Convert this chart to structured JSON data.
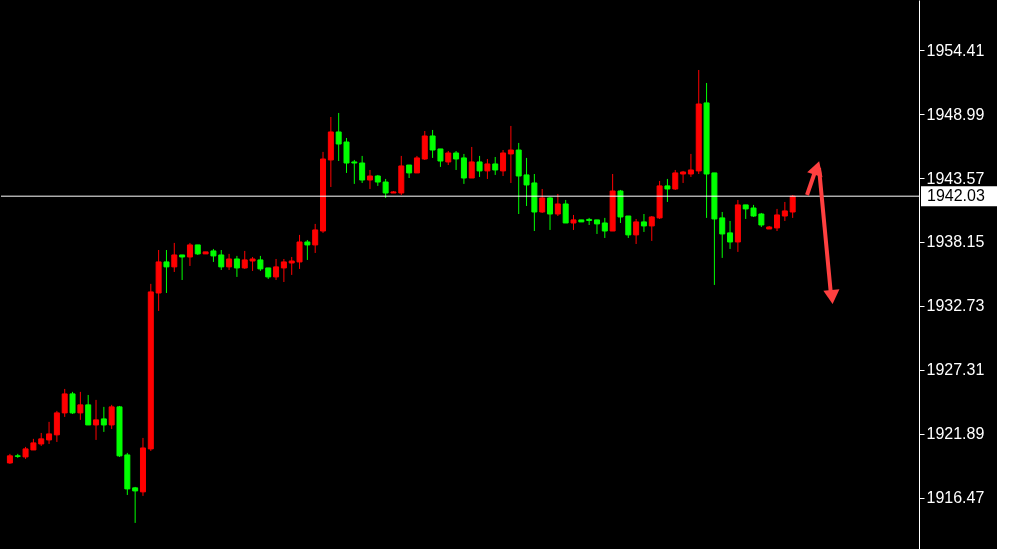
{
  "chart_data": {
    "type": "candlestick",
    "categories": [
      null,
      null,
      null,
      null,
      null,
      null,
      null,
      null,
      null,
      null,
      null,
      null,
      null,
      null,
      null,
      null,
      null,
      null,
      null,
      null,
      null,
      null,
      null,
      null,
      null,
      null,
      null,
      null,
      null,
      null,
      null,
      null,
      null,
      null,
      null,
      null,
      null,
      null,
      null,
      null,
      null,
      null,
      null,
      null,
      null,
      null,
      null,
      null,
      null,
      null,
      null,
      null,
      null,
      null,
      null,
      null,
      null,
      null,
      null,
      null,
      null,
      null,
      null,
      null,
      null,
      null,
      null,
      null,
      null,
      null,
      null,
      null,
      null,
      null,
      null,
      null,
      null,
      null,
      null,
      null,
      null,
      null,
      null,
      null,
      null,
      null,
      null,
      null,
      null,
      null,
      null,
      null,
      null,
      null,
      null,
      null,
      null,
      null,
      null,
      null,
      null,
      null,
      null,
      null,
      null,
      null,
      null,
      null,
      null,
      null,
      null,
      null,
      null,
      null,
      null,
      null
    ],
    "ohlc": [
      [
        1919.43,
        1920.2,
        1919.35,
        1920.03
      ],
      [
        1920.03,
        1920.2,
        1919.86,
        1919.99
      ],
      [
        1919.94,
        1920.79,
        1919.77,
        1920.62
      ],
      [
        1920.53,
        1921.47,
        1920.53,
        1921.13
      ],
      [
        1921.04,
        1921.97,
        1920.87,
        1921.47
      ],
      [
        1921.38,
        1922.91,
        1921.04,
        1921.89
      ],
      [
        1921.81,
        1923.84,
        1921.21,
        1923.67
      ],
      [
        1923.67,
        1925.7,
        1923.33,
        1925.28
      ],
      [
        1925.28,
        1925.45,
        1923.58,
        1923.67
      ],
      [
        1923.67,
        1925.45,
        1923.08,
        1924.35
      ],
      [
        1924.35,
        1925.19,
        1922.65,
        1922.65
      ],
      [
        1922.65,
        1924.77,
        1921.38,
        1923.08
      ],
      [
        1923.16,
        1924.18,
        1922.06,
        1922.65
      ],
      [
        1922.65,
        1924.35,
        1922.31,
        1924.18
      ],
      [
        1924.18,
        1924.26,
        1919.94,
        1920.03
      ],
      [
        1920.11,
        1920.28,
        1916.72,
        1917.23
      ],
      [
        1917.32,
        1917.4,
        1914.35,
        1917.06
      ],
      [
        1916.98,
        1921.55,
        1916.64,
        1920.7
      ],
      [
        1920.62,
        1934.6,
        1920.45,
        1933.92
      ],
      [
        1933.83,
        1937.47,
        1932.31,
        1936.46
      ],
      [
        1936.46,
        1937.47,
        1933.83,
        1936.04
      ],
      [
        1936.04,
        1938.07,
        1935.61,
        1937.05
      ],
      [
        1937.05,
        1937.05,
        1934.93,
        1936.88
      ],
      [
        1936.88,
        1938.07,
        1936.12,
        1937.9
      ],
      [
        1937.9,
        1937.9,
        1937.05,
        1937.14
      ],
      [
        1937.14,
        1937.31,
        1937.14,
        1937.31
      ],
      [
        1937.39,
        1937.56,
        1936.46,
        1936.97
      ],
      [
        1937.05,
        1937.47,
        1935.78,
        1936.04
      ],
      [
        1936.04,
        1937.14,
        1935.78,
        1936.71
      ],
      [
        1936.71,
        1936.97,
        1935.19,
        1935.95
      ],
      [
        1935.95,
        1937.39,
        1935.87,
        1936.63
      ],
      [
        1936.54,
        1936.88,
        1935.7,
        1936.71
      ],
      [
        1936.63,
        1936.97,
        1935.7,
        1935.87
      ],
      [
        1935.95,
        1935.95,
        1935.02,
        1935.19
      ],
      [
        1935.19,
        1936.71,
        1934.93,
        1936.04
      ],
      [
        1935.95,
        1936.71,
        1934.76,
        1936.46
      ],
      [
        1936.37,
        1936.88,
        1935.36,
        1936.54
      ],
      [
        1936.46,
        1938.75,
        1935.87,
        1938.15
      ],
      [
        1938.15,
        1938.32,
        1936.63,
        1937.9
      ],
      [
        1937.9,
        1939.68,
        1937.22,
        1939.17
      ],
      [
        1939.08,
        1945.78,
        1938.92,
        1945.18
      ],
      [
        1945.1,
        1948.74,
        1942.81,
        1947.47
      ],
      [
        1947.47,
        1949.08,
        1945.01,
        1946.45
      ],
      [
        1946.62,
        1946.96,
        1944.0,
        1944.84
      ],
      [
        1944.93,
        1945.1,
        1943.07,
        1944.84
      ],
      [
        1944.84,
        1945.44,
        1943.15,
        1943.4
      ],
      [
        1943.4,
        1944.25,
        1942.64,
        1943.74
      ],
      [
        1943.74,
        1943.83,
        1942.9,
        1943.23
      ],
      [
        1943.23,
        1943.49,
        1941.88,
        1942.3
      ],
      [
        1942.3,
        1942.47,
        1942.3,
        1942.39
      ],
      [
        1942.3,
        1945.44,
        1942.13,
        1944.59
      ],
      [
        1944.67,
        1944.67,
        1943.57,
        1944.0
      ],
      [
        1944.0,
        1945.44,
        1944.0,
        1945.27
      ],
      [
        1945.18,
        1947.55,
        1945.1,
        1947.13
      ],
      [
        1947.13,
        1947.64,
        1945.27,
        1945.94
      ],
      [
        1946.03,
        1946.03,
        1944.51,
        1945.01
      ],
      [
        1944.93,
        1945.86,
        1944.67,
        1945.69
      ],
      [
        1945.69,
        1945.86,
        1944.25,
        1945.18
      ],
      [
        1945.27,
        1945.61,
        1943.07,
        1943.57
      ],
      [
        1943.57,
        1946.2,
        1943.57,
        1944.93
      ],
      [
        1944.93,
        1945.44,
        1943.66,
        1944.17
      ],
      [
        1944.17,
        1945.18,
        1943.49,
        1944.76
      ],
      [
        1944.76,
        1945.35,
        1943.83,
        1944.25
      ],
      [
        1944.17,
        1945.94,
        1943.74,
        1945.69
      ],
      [
        1945.61,
        1947.98,
        1943.15,
        1945.94
      ],
      [
        1945.94,
        1946.54,
        1940.52,
        1943.74
      ],
      [
        1943.83,
        1945.27,
        1941.2,
        1942.98
      ],
      [
        1943.15,
        1943.91,
        1939.08,
        1940.69
      ],
      [
        1940.69,
        1942.64,
        1940.61,
        1941.88
      ],
      [
        1941.88,
        1941.96,
        1939.17,
        1940.52
      ],
      [
        1940.52,
        1942.22,
        1940.35,
        1941.37
      ],
      [
        1941.37,
        1941.71,
        1939.76,
        1939.76
      ],
      [
        1939.76,
        1940.44,
        1939.17,
        1940.02
      ],
      [
        1940.02,
        1940.02,
        1939.85,
        1939.85
      ],
      [
        1940.06,
        1940.19,
        1939.59,
        1939.97
      ],
      [
        1940.02,
        1940.02,
        1938.83,
        1939.68
      ],
      [
        1939.76,
        1940.19,
        1938.49,
        1939.08
      ],
      [
        1939.08,
        1943.91,
        1939.08,
        1942.47
      ],
      [
        1942.47,
        1942.56,
        1939.76,
        1940.27
      ],
      [
        1940.35,
        1940.35,
        1938.49,
        1938.75
      ],
      [
        1938.75,
        1940.1,
        1937.98,
        1939.85
      ],
      [
        1939.85,
        1940.52,
        1939.0,
        1939.51
      ],
      [
        1939.51,
        1940.35,
        1938.24,
        1940.27
      ],
      [
        1940.19,
        1943.32,
        1940.1,
        1942.9
      ],
      [
        1942.9,
        1943.49,
        1941.54,
        1942.64
      ],
      [
        1942.64,
        1944.25,
        1942.56,
        1944.0
      ],
      [
        1943.91,
        1944.17,
        1943.15,
        1944.08
      ],
      [
        1943.91,
        1945.61,
        1943.66,
        1944.25
      ],
      [
        1944.17,
        1952.72,
        1943.91,
        1949.84
      ],
      [
        1949.93,
        1951.62,
        1940.19,
        1943.91
      ],
      [
        1944.0,
        1944.0,
        1934.51,
        1940.1
      ],
      [
        1940.19,
        1940.69,
        1936.8,
        1938.83
      ],
      [
        1938.92,
        1939.93,
        1937.56,
        1938.15
      ],
      [
        1938.15,
        1941.71,
        1937.31,
        1941.29
      ],
      [
        1941.29,
        1941.29,
        1940.1,
        1940.95
      ],
      [
        1941.03,
        1941.29,
        1940.27,
        1940.35
      ],
      [
        1940.52,
        1940.61,
        1939.42,
        1939.59
      ],
      [
        1939.25,
        1939.51,
        1939.25,
        1939.42
      ],
      [
        1939.34,
        1940.95,
        1939.08,
        1940.44
      ],
      [
        1940.35,
        1941.54,
        1939.93,
        1940.78
      ],
      [
        1940.69,
        1942.13,
        1940.19,
        1942.03
      ],
      null,
      null,
      null,
      null,
      null,
      null,
      null,
      null,
      null,
      null,
      null,
      null,
      null,
      null,
      null
    ],
    "colors": [
      "#ff0000",
      "#00ff00",
      "#ff0000",
      "#ff0000",
      "#ff0000",
      "#ff0000",
      "#ff0000",
      "#ff0000",
      "#00ff00",
      "#ff0000",
      "#00ff00",
      "#ff0000",
      "#00ff00",
      "#ff0000",
      "#00ff00",
      "#00ff00",
      "#00ff00",
      "#ff0000",
      "#ff0000",
      "#ff0000",
      "#00ff00",
      "#ff0000",
      "#00ff00",
      "#ff0000",
      "#00ff00",
      "#ff0000",
      "#00ff00",
      "#00ff00",
      "#ff0000",
      "#00ff00",
      "#ff0000",
      "#ff0000",
      "#00ff00",
      "#00ff00",
      "#ff0000",
      "#ff0000",
      "#ff0000",
      "#ff0000",
      "#00ff00",
      "#ff0000",
      "#ff0000",
      "#ff0000",
      "#00ff00",
      "#00ff00",
      "#00ff00",
      "#00ff00",
      "#ff0000",
      "#00ff00",
      "#00ff00",
      "#ff0000",
      "#ff0000",
      "#00ff00",
      "#ff0000",
      "#ff0000",
      "#00ff00",
      "#00ff00",
      "#ff0000",
      "#00ff00",
      "#00ff00",
      "#ff0000",
      "#00ff00",
      "#ff0000",
      "#00ff00",
      "#ff0000",
      "#ff0000",
      "#00ff00",
      "#00ff00",
      "#00ff00",
      "#ff0000",
      "#00ff00",
      "#ff0000",
      "#00ff00",
      "#ff0000",
      "#00ff00",
      "#00ff00",
      "#00ff00",
      "#00ff00",
      "#ff0000",
      "#00ff00",
      "#00ff00",
      "#ff0000",
      "#00ff00",
      "#ff0000",
      "#ff0000",
      "#00ff00",
      "#ff0000",
      "#ff0000",
      "#ff0000",
      "#ff0000",
      "#00ff00",
      "#00ff00",
      "#00ff00",
      "#00ff00",
      "#ff0000",
      "#00ff00",
      "#00ff00",
      "#00ff00",
      "#ff0000",
      "#ff0000",
      "#ff0000",
      "#ff0000",
      null,
      null,
      null,
      null,
      null,
      null,
      null,
      null,
      null,
      null,
      null,
      null,
      null,
      null,
      null
    ],
    "ylim": [
      1912.14,
      1958.65
    ],
    "yticks": [
      1916.47,
      1921.89,
      1927.31,
      1932.73,
      1938.15,
      1943.57,
      1948.99,
      1954.41
    ],
    "ref_lines": [
      {
        "axis": "y",
        "value": 1942.03,
        "label": "1942.03",
        "color": "#ffffff"
      }
    ],
    "tick_labels": "y"
  }
}
